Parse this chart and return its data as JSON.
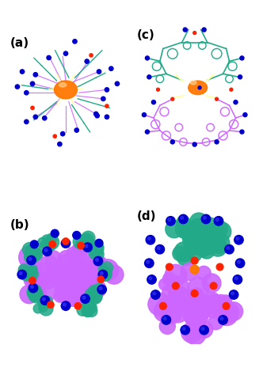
{
  "fig_width": 3.32,
  "fig_height": 4.69,
  "dpi": 100,
  "background": "#ffffff",
  "labels": [
    "(a)",
    "(b)",
    "(c)",
    "(d)"
  ],
  "label_fontsize": 11,
  "colors": {
    "btb_pink": "#CC66FF",
    "btb_cyan": "#22AA88",
    "cobalt": "#0000CC",
    "mu3_O": "#FF2200",
    "orange_dummy": "#FF7700",
    "pale_yellow": "#FFFFAA",
    "purple_space": "#CC55FF",
    "teal_space": "#55BBAA",
    "dark_blue_space": "#1111BB",
    "red_space": "#EE1100"
  }
}
